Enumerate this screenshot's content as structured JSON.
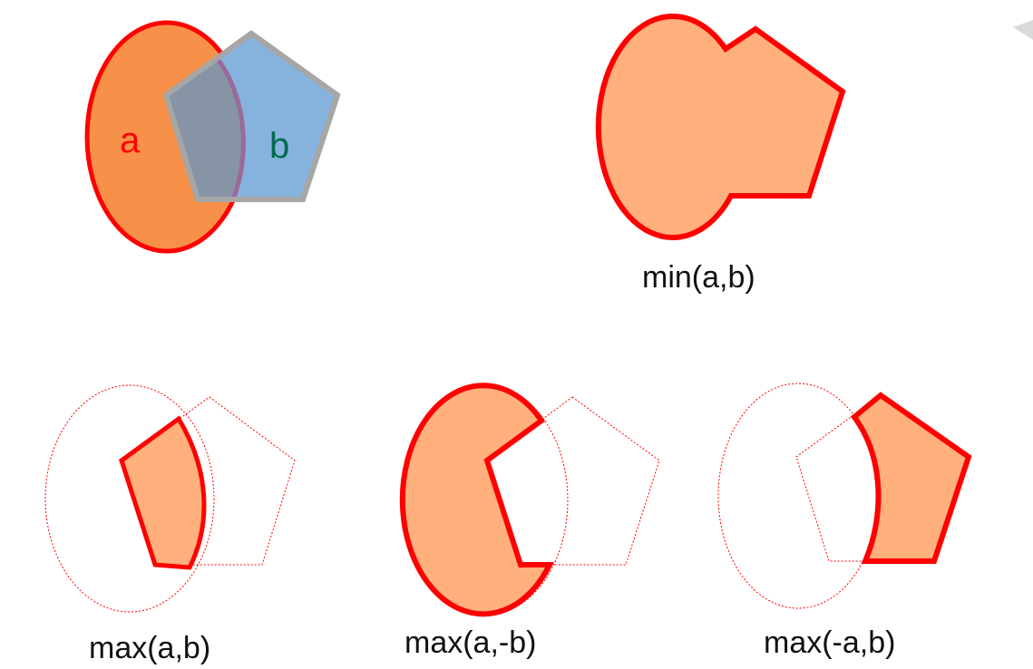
{
  "figure": {
    "colors": {
      "ellipse_fill": "#F79149",
      "pentagon_fill": "#86B3DE",
      "overlap_fill": "#8794A6",
      "outline_red": "#FF0000",
      "outline_grey": "#A6A6A6",
      "result_fill": "#FFB07D",
      "label_a": "#FF0000",
      "label_b": "#006B4E"
    },
    "inputs": {
      "label_a": "a",
      "label_b": "b"
    },
    "operations": {
      "min_label": "min(a,b)",
      "max_label": "max(a,b)",
      "max_a_neg_b_label": "max(a,-b)",
      "max_neg_a_b_label": "max(-a,b)"
    }
  }
}
